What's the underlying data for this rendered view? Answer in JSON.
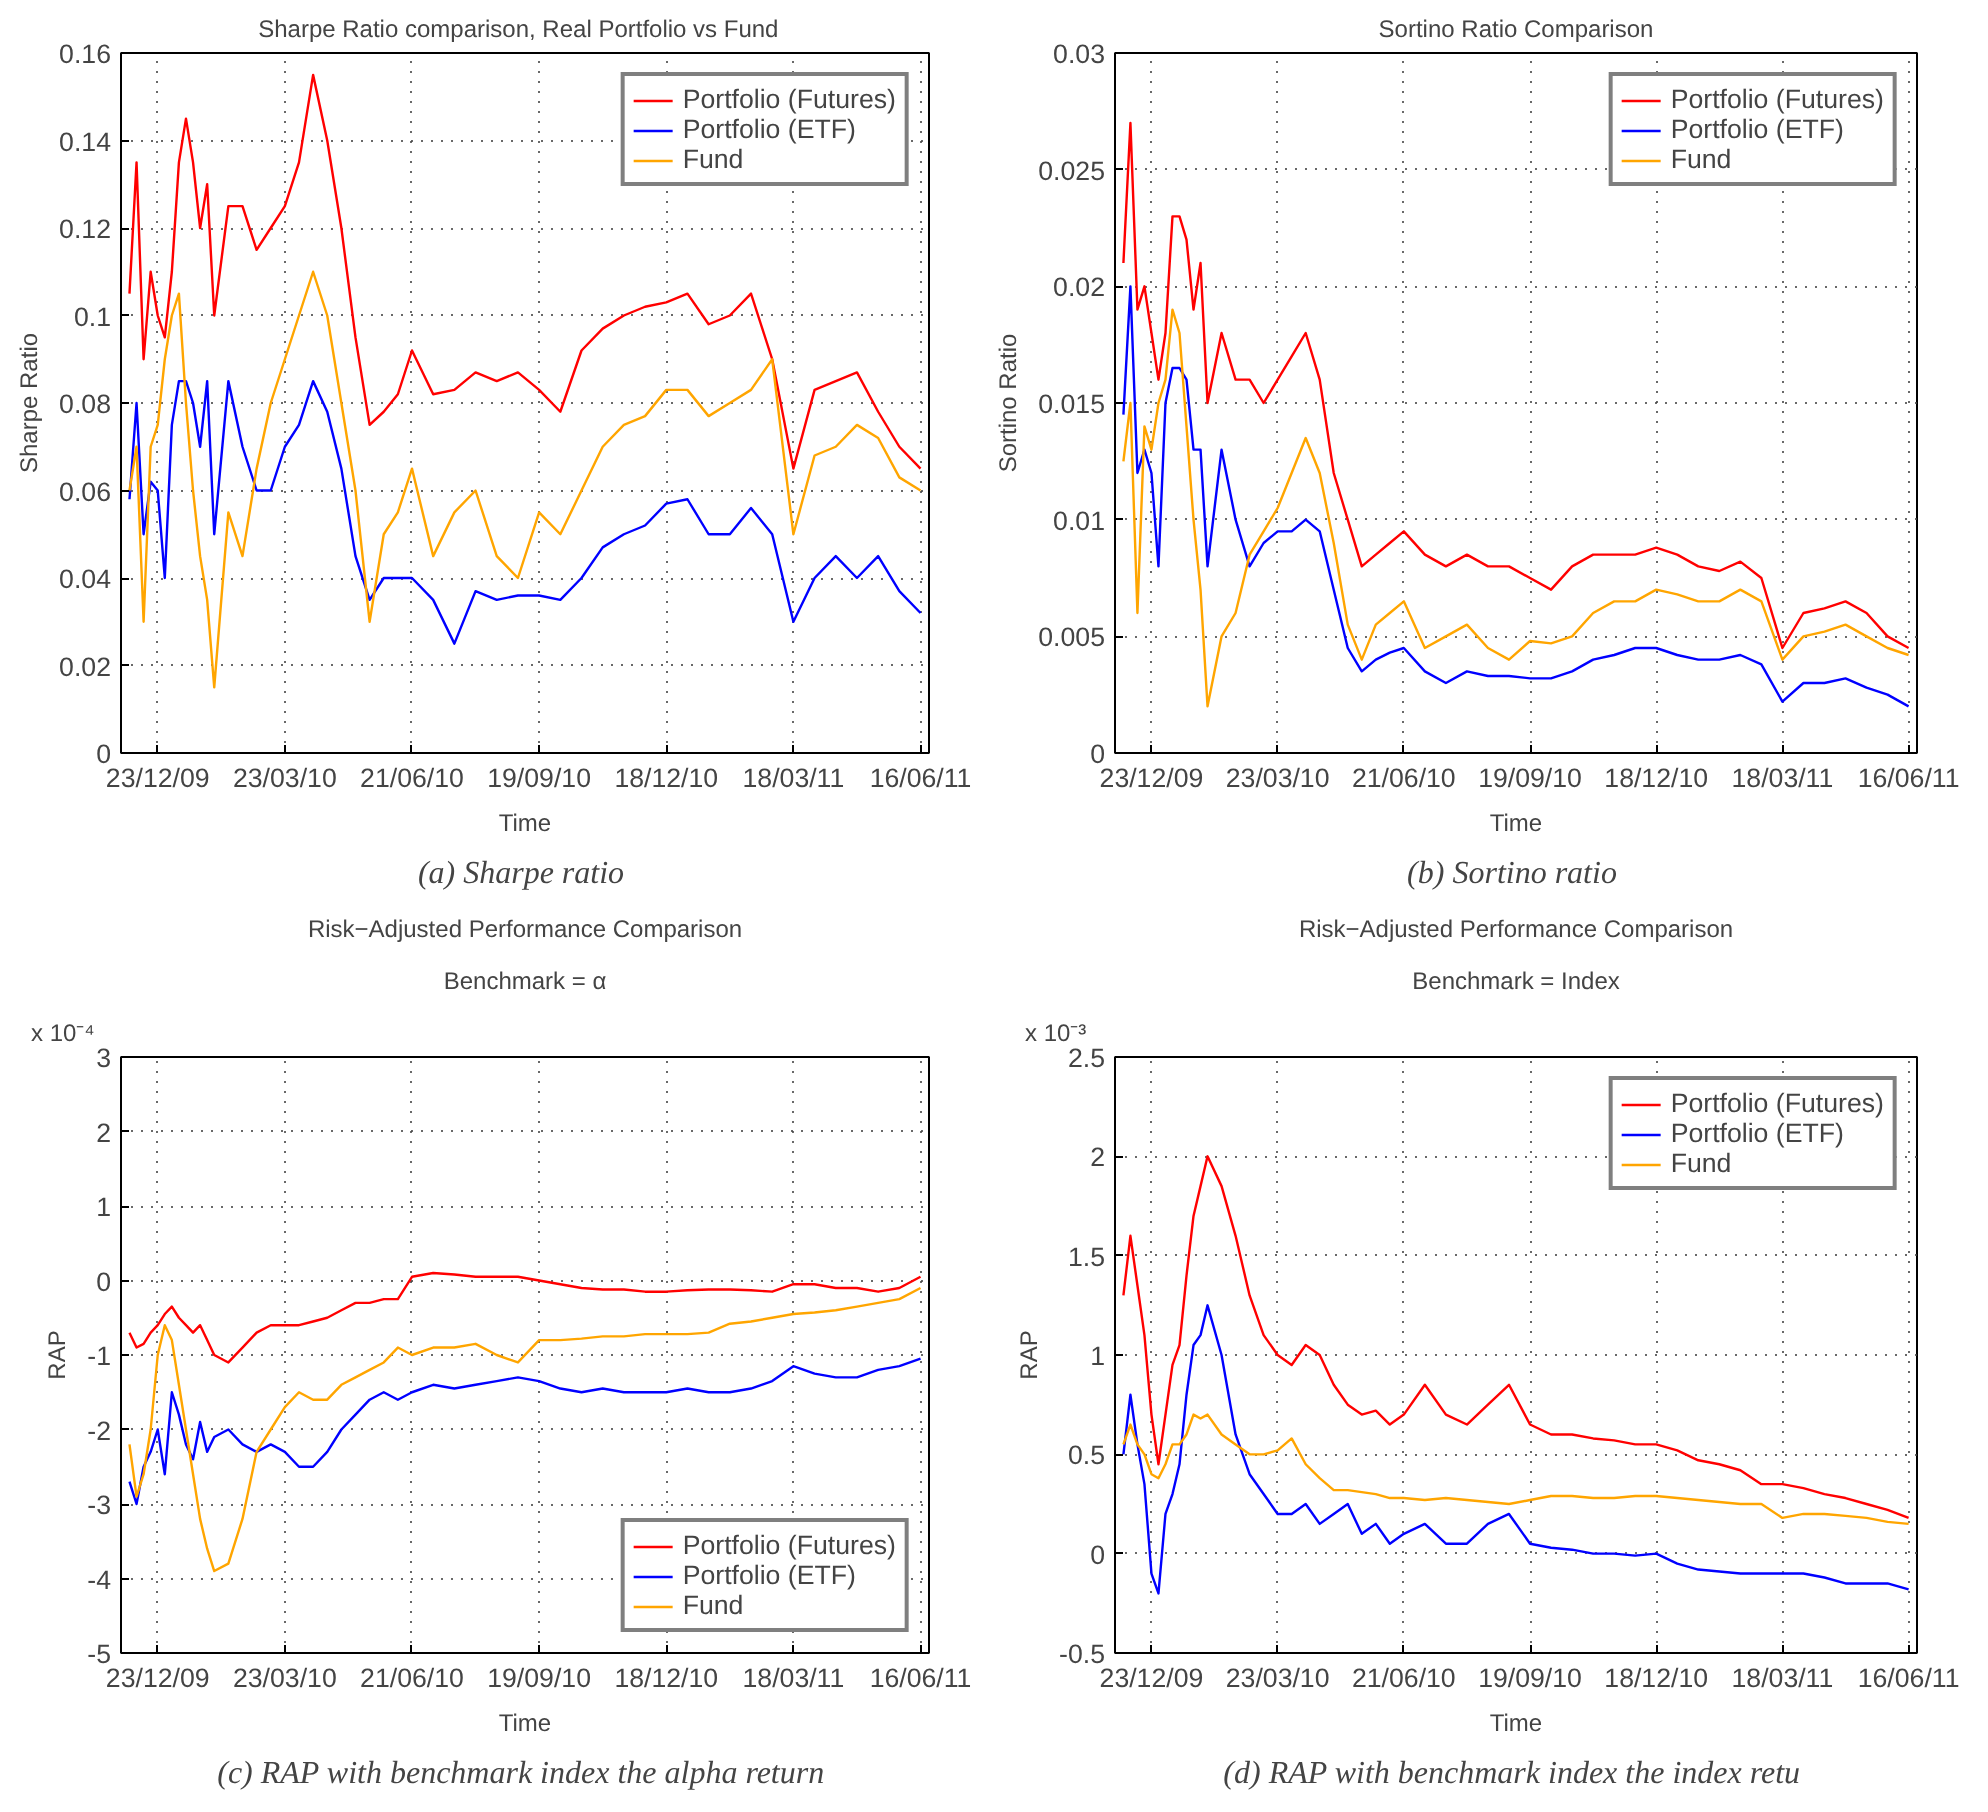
{
  "chart_data": [
    {
      "type": "line",
      "title": "Sharpe Ratio comparison, Real Portfolio  vs  Fund",
      "xlabel": "Time",
      "ylabel": "Sharpe Ratio",
      "legend": "top right",
      "grid": true,
      "xlim": [
        "2009-11-27",
        "2011-06-22"
      ],
      "ylim": [
        0,
        0.16
      ],
      "yticks": [
        0,
        0.02,
        0.04,
        0.06,
        0.08,
        0.1,
        0.12,
        0.14,
        0.16
      ],
      "xticks": [
        {
          "value": "2009-12-23",
          "label": "23/12/09"
        },
        {
          "value": "2010-03-23",
          "label": "23/03/10"
        },
        {
          "value": "2010-06-21",
          "label": "21/06/10"
        },
        {
          "value": "2010-09-19",
          "label": "19/09/10"
        },
        {
          "value": "2010-12-18",
          "label": "18/12/10"
        },
        {
          "value": "2011-03-18",
          "label": "18/03/11"
        },
        {
          "value": "2011-06-16",
          "label": "16/06/11"
        }
      ],
      "x": [
        "2009-12-03",
        "2009-12-08",
        "2009-12-13",
        "2009-12-18",
        "2009-12-23",
        "2009-12-28",
        "2010-01-02",
        "2010-01-07",
        "2010-01-12",
        "2010-01-17",
        "2010-01-22",
        "2010-01-27",
        "2010-02-01",
        "2010-02-11",
        "2010-02-21",
        "2010-03-03",
        "2010-03-13",
        "2010-03-23",
        "2010-04-02",
        "2010-04-12",
        "2010-04-22",
        "2010-05-02",
        "2010-05-12",
        "2010-05-22",
        "2010-06-01",
        "2010-06-11",
        "2010-06-21",
        "2010-07-06",
        "2010-07-21",
        "2010-08-05",
        "2010-08-20",
        "2010-09-04",
        "2010-09-19",
        "2010-10-04",
        "2010-10-19",
        "2010-11-03",
        "2010-11-18",
        "2010-12-03",
        "2010-12-18",
        "2011-01-02",
        "2011-01-17",
        "2011-02-01",
        "2011-02-16",
        "2011-03-03",
        "2011-03-18",
        "2011-04-02",
        "2011-04-17",
        "2011-05-02",
        "2011-05-17",
        "2011-06-01",
        "2011-06-16"
      ],
      "series": [
        {
          "name": "Portfolio (Futures)",
          "color": "#ff0000",
          "values": [
            0.105,
            0.135,
            0.09,
            0.11,
            0.1,
            0.095,
            0.11,
            0.135,
            0.145,
            0.135,
            0.12,
            0.13,
            0.1,
            0.125,
            0.125,
            0.115,
            0.12,
            0.125,
            0.135,
            0.155,
            0.14,
            0.12,
            0.095,
            0.075,
            0.078,
            0.082,
            0.092,
            0.082,
            0.083,
            0.087,
            0.085,
            0.087,
            0.083,
            0.078,
            0.092,
            0.097,
            0.1,
            0.102,
            0.103,
            0.105,
            0.098,
            0.1,
            0.105,
            0.09,
            0.065,
            0.083,
            0.085,
            0.087,
            0.078,
            0.07,
            0.065
          ]
        },
        {
          "name": "Portfolio (ETF)",
          "color": "#0000ff",
          "values": [
            0.058,
            0.08,
            0.05,
            0.062,
            0.06,
            0.04,
            0.075,
            0.085,
            0.085,
            0.08,
            0.07,
            0.085,
            0.05,
            0.085,
            0.07,
            0.06,
            0.06,
            0.07,
            0.075,
            0.085,
            0.078,
            0.065,
            0.045,
            0.035,
            0.04,
            0.04,
            0.04,
            0.035,
            0.025,
            0.037,
            0.035,
            0.036,
            0.036,
            0.035,
            0.04,
            0.047,
            0.05,
            0.052,
            0.057,
            0.058,
            0.05,
            0.05,
            0.056,
            0.05,
            0.03,
            0.04,
            0.045,
            0.04,
            0.045,
            0.037,
            0.032
          ]
        },
        {
          "name": "Fund",
          "color": "#ffa500",
          "values": [
            0.06,
            0.07,
            0.03,
            0.07,
            0.075,
            0.09,
            0.1,
            0.105,
            0.08,
            0.06,
            0.045,
            0.035,
            0.015,
            0.055,
            0.045,
            0.065,
            0.08,
            0.09,
            0.1,
            0.11,
            0.1,
            0.08,
            0.06,
            0.03,
            0.05,
            0.055,
            0.065,
            0.045,
            0.055,
            0.06,
            0.045,
            0.04,
            0.055,
            0.05,
            0.06,
            0.07,
            0.075,
            0.077,
            0.083,
            0.083,
            0.077,
            0.08,
            0.083,
            0.09,
            0.05,
            0.068,
            0.07,
            0.075,
            0.072,
            0.063,
            0.06
          ]
        }
      ],
      "annotations": [
        "(a)  Sharpe ratio"
      ]
    },
    {
      "type": "line",
      "title": "Sortino Ratio Comparison",
      "xlabel": "Time",
      "ylabel": "Sortino Ratio",
      "legend": "top right",
      "grid": true,
      "xlim": [
        "2009-11-27",
        "2011-06-22"
      ],
      "ylim": [
        0,
        0.03
      ],
      "yticks": [
        0,
        0.005,
        0.01,
        0.015,
        0.02,
        0.025,
        0.03
      ],
      "xticks": [
        {
          "value": "2009-12-23",
          "label": "23/12/09"
        },
        {
          "value": "2010-03-23",
          "label": "23/03/10"
        },
        {
          "value": "2010-06-21",
          "label": "21/06/10"
        },
        {
          "value": "2010-09-19",
          "label": "19/09/10"
        },
        {
          "value": "2010-12-18",
          "label": "18/12/10"
        },
        {
          "value": "2011-03-18",
          "label": "18/03/11"
        },
        {
          "value": "2011-06-16",
          "label": "16/06/11"
        }
      ],
      "x": [
        "2009-12-03",
        "2009-12-08",
        "2009-12-13",
        "2009-12-18",
        "2009-12-23",
        "2009-12-28",
        "2010-01-02",
        "2010-01-07",
        "2010-01-12",
        "2010-01-17",
        "2010-01-22",
        "2010-01-27",
        "2010-02-01",
        "2010-02-11",
        "2010-02-21",
        "2010-03-03",
        "2010-03-13",
        "2010-03-23",
        "2010-04-02",
        "2010-04-12",
        "2010-04-22",
        "2010-05-02",
        "2010-05-12",
        "2010-05-22",
        "2010-06-01",
        "2010-06-11",
        "2010-06-21",
        "2010-07-06",
        "2010-07-21",
        "2010-08-05",
        "2010-08-20",
        "2010-09-04",
        "2010-09-19",
        "2010-10-04",
        "2010-10-19",
        "2010-11-03",
        "2010-11-18",
        "2010-12-03",
        "2010-12-18",
        "2011-01-02",
        "2011-01-17",
        "2011-02-01",
        "2011-02-16",
        "2011-03-03",
        "2011-03-18",
        "2011-04-02",
        "2011-04-17",
        "2011-05-02",
        "2011-05-17",
        "2011-06-01",
        "2011-06-16"
      ],
      "series": [
        {
          "name": "Portfolio (Futures)",
          "color": "#ff0000",
          "values": [
            0.021,
            0.027,
            0.019,
            0.02,
            0.018,
            0.016,
            0.018,
            0.023,
            0.023,
            0.022,
            0.019,
            0.021,
            0.015,
            0.018,
            0.016,
            0.016,
            0.015,
            0.016,
            0.017,
            0.018,
            0.016,
            0.012,
            0.01,
            0.008,
            0.0085,
            0.009,
            0.0095,
            0.0085,
            0.008,
            0.0085,
            0.008,
            0.008,
            0.0075,
            0.007,
            0.008,
            0.0085,
            0.0085,
            0.0085,
            0.0088,
            0.0085,
            0.008,
            0.0078,
            0.0082,
            0.0075,
            0.0045,
            0.006,
            0.0062,
            0.0065,
            0.006,
            0.005,
            0.0045
          ]
        },
        {
          "name": "Portfolio (ETF)",
          "color": "#0000ff",
          "values": [
            0.0145,
            0.02,
            0.012,
            0.013,
            0.012,
            0.008,
            0.015,
            0.0165,
            0.0165,
            0.016,
            0.013,
            0.013,
            0.008,
            0.013,
            0.01,
            0.008,
            0.009,
            0.0095,
            0.0095,
            0.01,
            0.0095,
            0.007,
            0.0045,
            0.0035,
            0.004,
            0.0043,
            0.0045,
            0.0035,
            0.003,
            0.0035,
            0.0033,
            0.0033,
            0.0032,
            0.0032,
            0.0035,
            0.004,
            0.0042,
            0.0045,
            0.0045,
            0.0042,
            0.004,
            0.004,
            0.0042,
            0.0038,
            0.0022,
            0.003,
            0.003,
            0.0032,
            0.0028,
            0.0025,
            0.002
          ]
        },
        {
          "name": "Fund",
          "color": "#ffa500",
          "values": [
            0.0125,
            0.015,
            0.006,
            0.014,
            0.013,
            0.015,
            0.016,
            0.019,
            0.018,
            0.014,
            0.01,
            0.007,
            0.002,
            0.005,
            0.006,
            0.0085,
            0.0095,
            0.0105,
            0.012,
            0.0135,
            0.012,
            0.009,
            0.0055,
            0.004,
            0.0055,
            0.006,
            0.0065,
            0.0045,
            0.005,
            0.0055,
            0.0045,
            0.004,
            0.0048,
            0.0047,
            0.005,
            0.006,
            0.0065,
            0.0065,
            0.007,
            0.0068,
            0.0065,
            0.0065,
            0.007,
            0.0065,
            0.004,
            0.005,
            0.0052,
            0.0055,
            0.005,
            0.0045,
            0.0042
          ]
        }
      ],
      "annotations": [
        "(b)  Sortino ratio"
      ]
    },
    {
      "type": "line",
      "title": "Risk−Adjusted Performance Comparison",
      "subtitle": "Benchmark = α",
      "xlabel": "Time",
      "ylabel": "RAP",
      "legend": "bottom right",
      "grid": true,
      "xlim": [
        "2009-11-27",
        "2011-06-22"
      ],
      "ylim": [
        -5,
        3
      ],
      "yticks": [
        -5,
        -4,
        -3,
        -2,
        -1,
        0,
        1,
        2,
        3
      ],
      "xticks": [
        {
          "value": "2009-12-23",
          "label": "23/12/09"
        },
        {
          "value": "2010-03-23",
          "label": "23/03/10"
        },
        {
          "value": "2010-06-21",
          "label": "21/06/10"
        },
        {
          "value": "2010-09-19",
          "label": "19/09/10"
        },
        {
          "value": "2010-12-18",
          "label": "18/12/10"
        },
        {
          "value": "2011-03-18",
          "label": "18/03/11"
        },
        {
          "value": "2011-06-16",
          "label": "16/06/11"
        }
      ],
      "x": [
        "2009-12-03",
        "2009-12-08",
        "2009-12-13",
        "2009-12-18",
        "2009-12-23",
        "2009-12-28",
        "2010-01-02",
        "2010-01-07",
        "2010-01-12",
        "2010-01-17",
        "2010-01-22",
        "2010-01-27",
        "2010-02-01",
        "2010-02-11",
        "2010-02-21",
        "2010-03-03",
        "2010-03-13",
        "2010-03-23",
        "2010-04-02",
        "2010-04-12",
        "2010-04-22",
        "2010-05-02",
        "2010-05-12",
        "2010-05-22",
        "2010-06-01",
        "2010-06-11",
        "2010-06-21",
        "2010-07-06",
        "2010-07-21",
        "2010-08-05",
        "2010-08-20",
        "2010-09-04",
        "2010-09-19",
        "2010-10-04",
        "2010-10-19",
        "2010-11-03",
        "2010-11-18",
        "2010-12-03",
        "2010-12-18",
        "2011-01-02",
        "2011-01-17",
        "2011-02-01",
        "2011-02-16",
        "2011-03-03",
        "2011-03-18",
        "2011-04-02",
        "2011-04-17",
        "2011-05-02",
        "2011-05-17",
        "2011-06-01",
        "2011-06-16"
      ],
      "series": [
        {
          "name": "Portfolio (Futures)",
          "color": "#ff0000",
          "values": [
            -0.7,
            -0.9,
            -0.85,
            -0.7,
            -0.6,
            -0.45,
            -0.35,
            -0.5,
            -0.6,
            -0.7,
            -0.6,
            -0.8,
            -1.0,
            -1.1,
            -0.9,
            -0.7,
            -0.6,
            -0.6,
            -0.6,
            -0.55,
            -0.5,
            -0.4,
            -0.3,
            -0.3,
            -0.25,
            -0.25,
            0.05,
            0.1,
            0.08,
            0.05,
            0.05,
            0.05,
            0.0,
            -0.05,
            -0.1,
            -0.12,
            -0.12,
            -0.15,
            -0.15,
            -0.13,
            -0.12,
            -0.12,
            -0.13,
            -0.15,
            -0.05,
            -0.05,
            -0.1,
            -0.1,
            -0.15,
            -0.1,
            0.05
          ]
        },
        {
          "name": "Portfolio (ETF)",
          "color": "#0000ff",
          "values": [
            -2.7,
            -3.0,
            -2.5,
            -2.3,
            -2.0,
            -2.6,
            -1.5,
            -1.8,
            -2.2,
            -2.4,
            -1.9,
            -2.3,
            -2.1,
            -2.0,
            -2.2,
            -2.3,
            -2.2,
            -2.3,
            -2.5,
            -2.5,
            -2.3,
            -2.0,
            -1.8,
            -1.6,
            -1.5,
            -1.6,
            -1.5,
            -1.4,
            -1.45,
            -1.4,
            -1.35,
            -1.3,
            -1.35,
            -1.45,
            -1.5,
            -1.45,
            -1.5,
            -1.5,
            -1.5,
            -1.45,
            -1.5,
            -1.5,
            -1.45,
            -1.35,
            -1.15,
            -1.25,
            -1.3,
            -1.3,
            -1.2,
            -1.15,
            -1.05
          ]
        },
        {
          "name": "Fund",
          "color": "#ffa500",
          "values": [
            -2.2,
            -2.9,
            -2.6,
            -2.0,
            -1.0,
            -0.6,
            -0.8,
            -1.4,
            -2.0,
            -2.6,
            -3.2,
            -3.6,
            -3.9,
            -3.8,
            -3.2,
            -2.3,
            -2.0,
            -1.7,
            -1.5,
            -1.6,
            -1.6,
            -1.4,
            -1.3,
            -1.2,
            -1.1,
            -0.9,
            -1.0,
            -0.9,
            -0.9,
            -0.85,
            -1.0,
            -1.1,
            -0.8,
            -0.8,
            -0.78,
            -0.75,
            -0.75,
            -0.72,
            -0.72,
            -0.72,
            -0.7,
            -0.58,
            -0.55,
            -0.5,
            -0.45,
            -0.43,
            -0.4,
            -0.35,
            -0.3,
            -0.25,
            -0.1
          ]
        }
      ],
      "annotations": [
        "x 10⁻⁴",
        "(c)  RAP with benchmark index the alpha return"
      ]
    },
    {
      "type": "line",
      "title": "Risk−Adjusted Performance Comparison",
      "subtitle": "Benchmark = Index",
      "xlabel": "Time",
      "ylabel": "RAP",
      "legend": "top right",
      "grid": true,
      "xlim": [
        "2009-11-27",
        "2011-06-22"
      ],
      "ylim": [
        -0.5,
        2.5
      ],
      "yticks": [
        -0.5,
        0,
        0.5,
        1,
        1.5,
        2,
        2.5
      ],
      "xticks": [
        {
          "value": "2009-12-23",
          "label": "23/12/09"
        },
        {
          "value": "2010-03-23",
          "label": "23/03/10"
        },
        {
          "value": "2010-06-21",
          "label": "21/06/10"
        },
        {
          "value": "2010-09-19",
          "label": "19/09/10"
        },
        {
          "value": "2010-12-18",
          "label": "18/12/10"
        },
        {
          "value": "2011-03-18",
          "label": "18/03/11"
        },
        {
          "value": "2011-06-16",
          "label": "16/06/11"
        }
      ],
      "x": [
        "2009-12-03",
        "2009-12-08",
        "2009-12-13",
        "2009-12-18",
        "2009-12-23",
        "2009-12-28",
        "2010-01-02",
        "2010-01-07",
        "2010-01-12",
        "2010-01-17",
        "2010-01-22",
        "2010-01-27",
        "2010-02-01",
        "2010-02-11",
        "2010-02-21",
        "2010-03-03",
        "2010-03-13",
        "2010-03-23",
        "2010-04-02",
        "2010-04-12",
        "2010-04-22",
        "2010-05-02",
        "2010-05-12",
        "2010-05-22",
        "2010-06-01",
        "2010-06-11",
        "2010-06-21",
        "2010-07-06",
        "2010-07-21",
        "2010-08-05",
        "2010-08-20",
        "2010-09-04",
        "2010-09-19",
        "2010-10-04",
        "2010-10-19",
        "2010-11-03",
        "2010-11-18",
        "2010-12-03",
        "2010-12-18",
        "2011-01-02",
        "2011-01-17",
        "2011-02-01",
        "2011-02-16",
        "2011-03-03",
        "2011-03-18",
        "2011-04-02",
        "2011-04-17",
        "2011-05-02",
        "2011-05-17",
        "2011-06-01",
        "2011-06-16"
      ],
      "series": [
        {
          "name": "Portfolio (Futures)",
          "color": "#ff0000",
          "values": [
            1.3,
            1.6,
            1.35,
            1.1,
            0.7,
            0.45,
            0.7,
            0.95,
            1.05,
            1.4,
            1.7,
            1.85,
            2.0,
            1.85,
            1.6,
            1.3,
            1.1,
            1.0,
            0.95,
            1.05,
            1.0,
            0.85,
            0.75,
            0.7,
            0.72,
            0.65,
            0.7,
            0.85,
            0.7,
            0.65,
            0.75,
            0.85,
            0.65,
            0.6,
            0.6,
            0.58,
            0.57,
            0.55,
            0.55,
            0.52,
            0.47,
            0.45,
            0.42,
            0.35,
            0.35,
            0.33,
            0.3,
            0.28,
            0.25,
            0.22,
            0.18
          ]
        },
        {
          "name": "Portfolio (ETF)",
          "color": "#0000ff",
          "values": [
            0.5,
            0.8,
            0.55,
            0.35,
            -0.1,
            -0.2,
            0.2,
            0.3,
            0.45,
            0.8,
            1.05,
            1.1,
            1.25,
            1.0,
            0.6,
            0.4,
            0.3,
            0.2,
            0.2,
            0.25,
            0.15,
            0.2,
            0.25,
            0.1,
            0.15,
            0.05,
            0.1,
            0.15,
            0.05,
            0.05,
            0.15,
            0.2,
            0.05,
            0.03,
            0.02,
            0.0,
            0.0,
            -0.01,
            0.0,
            -0.05,
            -0.08,
            -0.09,
            -0.1,
            -0.1,
            -0.1,
            -0.1,
            -0.12,
            -0.15,
            -0.15,
            -0.15,
            -0.18
          ]
        },
        {
          "name": "Fund",
          "color": "#ffa500",
          "values": [
            0.55,
            0.65,
            0.55,
            0.5,
            0.4,
            0.38,
            0.45,
            0.55,
            0.55,
            0.6,
            0.7,
            0.68,
            0.7,
            0.6,
            0.55,
            0.5,
            0.5,
            0.52,
            0.58,
            0.45,
            0.38,
            0.32,
            0.32,
            0.31,
            0.3,
            0.28,
            0.28,
            0.27,
            0.28,
            0.27,
            0.26,
            0.25,
            0.27,
            0.29,
            0.29,
            0.28,
            0.28,
            0.29,
            0.29,
            0.28,
            0.27,
            0.26,
            0.25,
            0.25,
            0.18,
            0.2,
            0.2,
            0.19,
            0.18,
            0.16,
            0.15
          ]
        }
      ],
      "annotations": [
        "x 10⁻³",
        "(d)  RAP with benchmark index the index retu"
      ]
    }
  ]
}
